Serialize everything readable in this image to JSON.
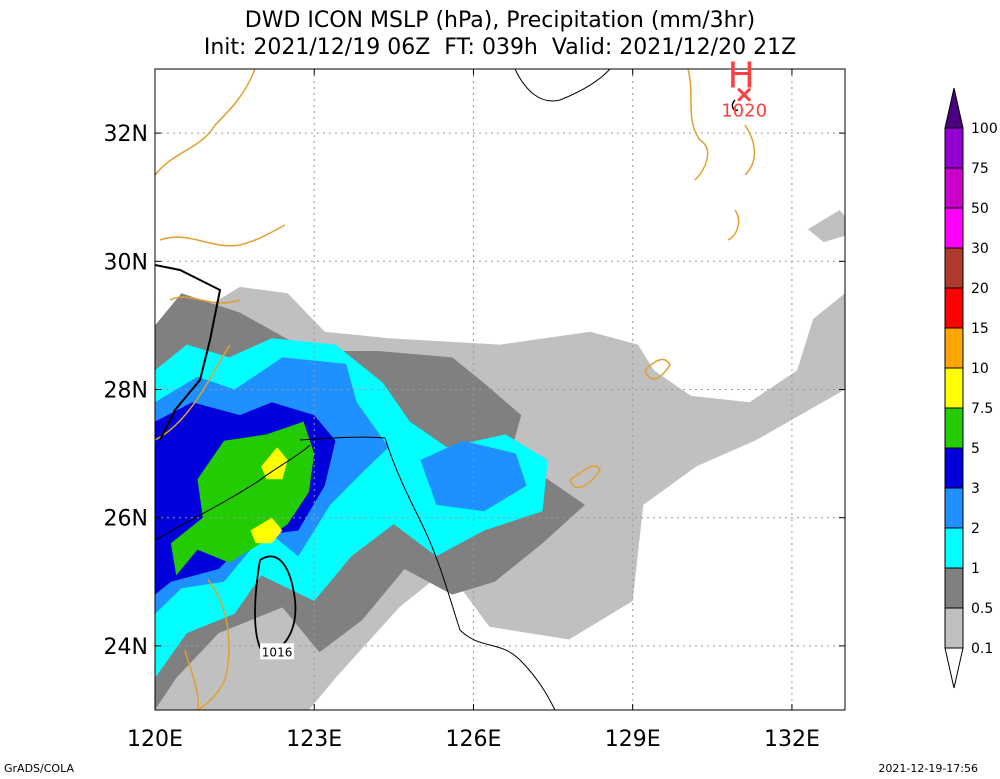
{
  "title_line1": "DWD ICON MSLP (hPa), Precipitation (mm/3hr)",
  "title_line2": "Init: 2021/12/19 06Z  FT: 039h  Valid: 2021/12/20 21Z",
  "footer_left": "GrADS/COLA",
  "footer_right": "2021-12-19-17:56",
  "chart_data": {
    "type": "heatmap",
    "title": "DWD ICON MSLP (hPa), Precipitation (mm/3hr)",
    "subtitle": "Init: 2021/12/19 06Z  FT: 039h  Valid: 2021/12/20 21Z",
    "xlim": [
      120,
      133
    ],
    "ylim": [
      23,
      33
    ],
    "x_ticks": [
      {
        "value": 120,
        "label": "120E"
      },
      {
        "value": 123,
        "label": "123E"
      },
      {
        "value": 126,
        "label": "126E"
      },
      {
        "value": 129,
        "label": "129E"
      },
      {
        "value": 132,
        "label": "132E"
      }
    ],
    "y_ticks": [
      {
        "value": 24,
        "label": "24N"
      },
      {
        "value": 26,
        "label": "26N"
      },
      {
        "value": 28,
        "label": "28N"
      },
      {
        "value": 30,
        "label": "30N"
      },
      {
        "value": 32,
        "label": "32N"
      }
    ],
    "grid": true,
    "colorbar": {
      "placement": "right",
      "levels": [
        "0.1",
        "0.5",
        "1",
        "2",
        "3",
        "5",
        "7.5",
        "10",
        "15",
        "20",
        "30",
        "50",
        "75",
        "100"
      ],
      "colors": [
        "#ffffff",
        "#c0c0c0",
        "#808080",
        "#00ffff",
        "#1e90ff",
        "#0000dd",
        "#22cc00",
        "#ffff00",
        "#ffa500",
        "#ff0000",
        "#b03a2e",
        "#ff00ff",
        "#cc00cc",
        "#9400d3",
        "#4b0082"
      ]
    },
    "pressure_centers": [
      {
        "type": "H",
        "value": "1020",
        "lon": 131.1,
        "lat": 32.6
      }
    ],
    "isobar_labels": [
      {
        "value": "1016",
        "lon": 122.3,
        "lat": 23.9
      }
    ],
    "precip_regions": [
      {
        "level": 1,
        "label": "0.1-0.5",
        "points": [
          [
            120,
            28.7
          ],
          [
            120.8,
            29.2
          ],
          [
            121.6,
            29.6
          ],
          [
            122.5,
            29.5
          ],
          [
            123.2,
            28.9
          ],
          [
            124.4,
            28.8
          ],
          [
            126.5,
            28.7
          ],
          [
            128.2,
            28.9
          ],
          [
            129.1,
            28.7
          ],
          [
            129.4,
            28.3
          ],
          [
            130.1,
            27.9
          ],
          [
            131.2,
            27.8
          ],
          [
            132.1,
            28.3
          ],
          [
            132.4,
            29.1
          ],
          [
            133,
            29.5
          ],
          [
            133,
            28
          ],
          [
            131.3,
            27.2
          ],
          [
            130.2,
            26.8
          ],
          [
            129.2,
            26.2
          ],
          [
            129.0,
            24.7
          ],
          [
            127.8,
            24.1
          ],
          [
            126.3,
            24.3
          ],
          [
            125.5,
            25.2
          ],
          [
            124.6,
            24.6
          ],
          [
            123.4,
            23.5
          ],
          [
            122.9,
            23
          ],
          [
            120,
            23
          ]
        ]
      },
      {
        "level": 1,
        "label": "0.1-0.5",
        "points": [
          [
            132.3,
            30.5
          ],
          [
            132.9,
            30.8
          ],
          [
            133,
            30.7
          ],
          [
            133,
            30.4
          ],
          [
            132.6,
            30.3
          ]
        ]
      },
      {
        "level": 2,
        "label": "0.5-1",
        "points": [
          [
            120.0,
            29.0
          ],
          [
            120.5,
            29.5
          ],
          [
            121.6,
            29.2
          ],
          [
            122.9,
            28.6
          ],
          [
            124.2,
            28.6
          ],
          [
            125.6,
            28.5
          ],
          [
            126.2,
            28.1
          ],
          [
            126.9,
            27.6
          ],
          [
            126.7,
            27.0
          ],
          [
            127.4,
            26.6
          ],
          [
            128.1,
            26.2
          ],
          [
            127.3,
            25.6
          ],
          [
            126.4,
            25.0
          ],
          [
            125.6,
            24.8
          ],
          [
            124.7,
            25.2
          ],
          [
            123.9,
            24.4
          ],
          [
            123.1,
            23.9
          ],
          [
            122.4,
            24.6
          ],
          [
            121.2,
            24.2
          ],
          [
            120.4,
            23.5
          ],
          [
            120,
            23
          ]
        ]
      },
      {
        "level": 3,
        "label": "1-2",
        "points": [
          [
            120,
            28.3
          ],
          [
            120.6,
            28.7
          ],
          [
            121.4,
            28.5
          ],
          [
            122.2,
            28.8
          ],
          [
            123.4,
            28.7
          ],
          [
            124.3,
            28.1
          ],
          [
            124.8,
            27.5
          ],
          [
            125.5,
            27.1
          ],
          [
            126.6,
            27.3
          ],
          [
            127.4,
            26.9
          ],
          [
            127.3,
            26.1
          ],
          [
            126.2,
            25.8
          ],
          [
            125.3,
            25.4
          ],
          [
            124.5,
            25.9
          ],
          [
            123.7,
            25.4
          ],
          [
            123.0,
            24.7
          ],
          [
            122.0,
            25.1
          ],
          [
            121.5,
            24.5
          ],
          [
            120.6,
            24.2
          ],
          [
            120,
            23.5
          ]
        ]
      },
      {
        "level": 4,
        "label": "2-3",
        "points": [
          [
            120,
            27.8
          ],
          [
            120.8,
            28.2
          ],
          [
            121.5,
            28.0
          ],
          [
            122.4,
            28.5
          ],
          [
            123.6,
            28.4
          ],
          [
            123.8,
            27.8
          ],
          [
            124.4,
            27.1
          ],
          [
            123.9,
            26.7
          ],
          [
            123.3,
            26.2
          ],
          [
            122.7,
            25.4
          ],
          [
            122.1,
            25.8
          ],
          [
            121.3,
            25.0
          ],
          [
            120.5,
            24.9
          ],
          [
            120,
            24.5
          ]
        ]
      },
      {
        "level": 4,
        "label": "2-3",
        "points": [
          [
            125.0,
            26.9
          ],
          [
            125.8,
            27.2
          ],
          [
            126.8,
            27.0
          ],
          [
            127.0,
            26.5
          ],
          [
            126.2,
            26.1
          ],
          [
            125.3,
            26.2
          ]
        ]
      },
      {
        "level": 5,
        "label": "3-5",
        "points": [
          [
            120,
            27.5
          ],
          [
            120.7,
            27.8
          ],
          [
            121.6,
            27.6
          ],
          [
            122.2,
            27.8
          ],
          [
            123.0,
            27.6
          ],
          [
            123.4,
            27.2
          ],
          [
            123.2,
            26.5
          ],
          [
            122.7,
            25.8
          ],
          [
            121.8,
            25.7
          ],
          [
            121.2,
            25.2
          ],
          [
            120.3,
            25.0
          ],
          [
            120,
            24.8
          ]
        ]
      },
      {
        "level": 6,
        "label": "5-7.5",
        "points": [
          [
            120.8,
            26.6
          ],
          [
            121.3,
            27.2
          ],
          [
            122.1,
            27.3
          ],
          [
            122.8,
            27.5
          ],
          [
            123.0,
            27.0
          ],
          [
            122.9,
            26.4
          ],
          [
            122.5,
            25.9
          ],
          [
            122.0,
            25.6
          ],
          [
            121.4,
            25.3
          ],
          [
            120.8,
            25.5
          ],
          [
            120.4,
            25.1
          ],
          [
            120.3,
            25.6
          ],
          [
            120.9,
            26.0
          ]
        ]
      },
      {
        "level": 7,
        "label": "7.5-10",
        "points": [
          [
            122.0,
            26.8
          ],
          [
            122.3,
            27.1
          ],
          [
            122.5,
            26.9
          ],
          [
            122.4,
            26.6
          ],
          [
            122.1,
            26.6
          ]
        ]
      },
      {
        "level": 7,
        "label": "7.5-10",
        "points": [
          [
            121.8,
            25.8
          ],
          [
            122.2,
            26.0
          ],
          [
            122.4,
            25.8
          ],
          [
            122.2,
            25.6
          ],
          [
            121.9,
            25.6
          ]
        ]
      }
    ]
  }
}
